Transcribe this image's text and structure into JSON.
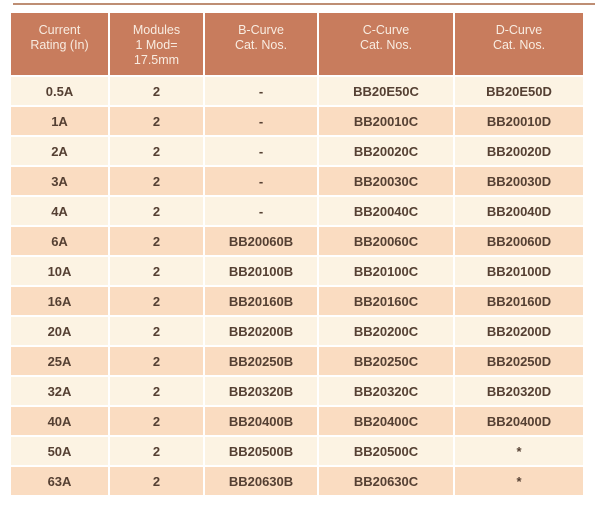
{
  "page": {
    "background": "#ffffff"
  },
  "divider": {
    "color": "#be8e74"
  },
  "table": {
    "columns": [
      {
        "key": "current-rating",
        "label": "Current\nRating (In)"
      },
      {
        "key": "modules",
        "label": "Modules\n1 Mod=\n17.5mm"
      },
      {
        "key": "b-curve",
        "label": "B-Curve\nCat. Nos."
      },
      {
        "key": "c-curve",
        "label": "C-Curve\nCat. Nos."
      },
      {
        "key": "d-curve",
        "label": "D-Curve\nCat. Nos."
      }
    ],
    "rows": [
      {
        "cells": [
          "0.5A",
          "2",
          "-",
          "BB20E50C",
          "BB20E50D"
        ]
      },
      {
        "cells": [
          "1A",
          "2",
          "-",
          "BB20010C",
          "BB20010D"
        ]
      },
      {
        "cells": [
          "2A",
          "2",
          "-",
          "BB20020C",
          "BB20020D"
        ]
      },
      {
        "cells": [
          "3A",
          "2",
          "-",
          "BB20030C",
          "BB20030D"
        ]
      },
      {
        "cells": [
          "4A",
          "2",
          "-",
          "BB20040C",
          "BB20040D"
        ]
      },
      {
        "cells": [
          "6A",
          "2",
          "BB20060B",
          "BB20060C",
          "BB20060D"
        ]
      },
      {
        "cells": [
          "10A",
          "2",
          "BB20100B",
          "BB20100C",
          "BB20100D"
        ]
      },
      {
        "cells": [
          "16A",
          "2",
          "BB20160B",
          "BB20160C",
          "BB20160D"
        ]
      },
      {
        "cells": [
          "20A",
          "2",
          "BB20200B",
          "BB20200C",
          "BB20200D"
        ]
      },
      {
        "cells": [
          "25A",
          "2",
          "BB20250B",
          "BB20250C",
          "BB20250D"
        ]
      },
      {
        "cells": [
          "32A",
          "2",
          "BB20320B",
          "BB20320C",
          "BB20320D"
        ]
      },
      {
        "cells": [
          "40A",
          "2",
          "BB20400B",
          "BB20400C",
          "BB20400D"
        ]
      },
      {
        "cells": [
          "50A",
          "2",
          "BB20500B",
          "BB20500C",
          "*"
        ]
      },
      {
        "cells": [
          "63A",
          "2",
          "BB20630B",
          "BB20630C",
          "*"
        ]
      }
    ],
    "colors": {
      "header_bg": "#c87c5d",
      "header_text": "#f8ece1",
      "row_light": "#fcf3e3",
      "row_dark": "#fadcc1",
      "cell_text": "#554033",
      "grid_line": "#ffffff"
    }
  }
}
